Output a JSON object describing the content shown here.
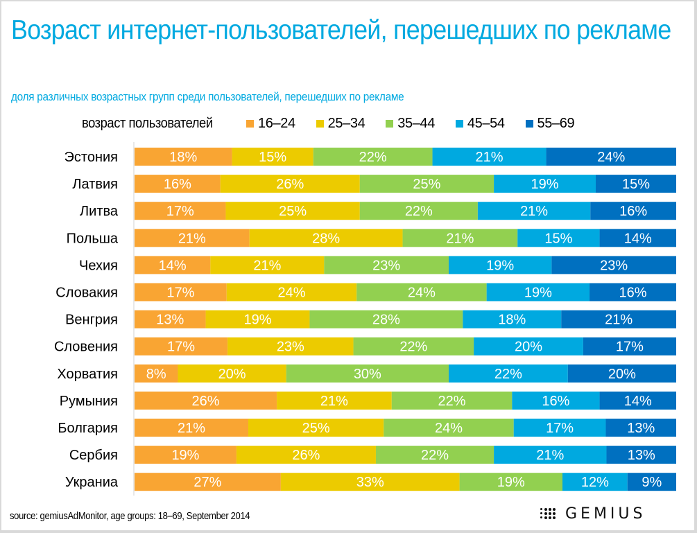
{
  "title": "Возраст интернет-пользователей, перешедших по рекламе",
  "subtitle": "доля различных возрастных групп среди пользователей, перешедших по рекламе",
  "legend": {
    "title": "возраст пользователей",
    "items": [
      {
        "label": "16–24",
        "color": "#f9a533"
      },
      {
        "label": "25–34",
        "color": "#eccb00"
      },
      {
        "label": "35–44",
        "color": "#92d050"
      },
      {
        "label": "45–54",
        "color": "#00a9e0"
      },
      {
        "label": "55–69",
        "color": "#0070c0"
      }
    ]
  },
  "source": "source: gemiusAdMonitor, age groups: 18–69, September 2014",
  "logo": {
    "text": "GEMIUS",
    "icon": "dot-grid-icon"
  },
  "chart_data": {
    "type": "bar",
    "orientation": "horizontal",
    "stacked": true,
    "normalized": true,
    "title": "Возраст интернет-пользователей, перешедших по рекламе",
    "subtitle": "доля различных возрастных групп среди пользователей, перешедших по рекламе",
    "xlabel": "",
    "ylabel": "",
    "unit": "%",
    "legend_title": "возраст пользователей",
    "legend_position": "top",
    "grid": false,
    "categories": [
      "Эстония",
      "Латвия",
      "Литва",
      "Польша",
      "Чехия",
      "Словакия",
      "Венгрия",
      "Словения",
      "Хорватия",
      "Румыния",
      "Болгария",
      "Сербия",
      "Украниа"
    ],
    "series": [
      {
        "name": "16–24",
        "color": "#f9a533",
        "values": [
          18,
          16,
          17,
          21,
          14,
          17,
          13,
          17,
          8,
          26,
          21,
          19,
          27
        ]
      },
      {
        "name": "25–34",
        "color": "#eccb00",
        "values": [
          15,
          26,
          25,
          28,
          21,
          24,
          19,
          23,
          20,
          21,
          25,
          26,
          33
        ]
      },
      {
        "name": "35–44",
        "color": "#92d050",
        "values": [
          22,
          25,
          22,
          21,
          23,
          24,
          28,
          22,
          30,
          22,
          24,
          22,
          19
        ]
      },
      {
        "name": "45–54",
        "color": "#00a9e0",
        "values": [
          21,
          19,
          21,
          15,
          19,
          19,
          18,
          20,
          22,
          16,
          17,
          21,
          12
        ]
      },
      {
        "name": "55–69",
        "color": "#0070c0",
        "values": [
          24,
          15,
          16,
          14,
          23,
          16,
          21,
          17,
          20,
          14,
          13,
          13,
          9
        ]
      }
    ]
  }
}
